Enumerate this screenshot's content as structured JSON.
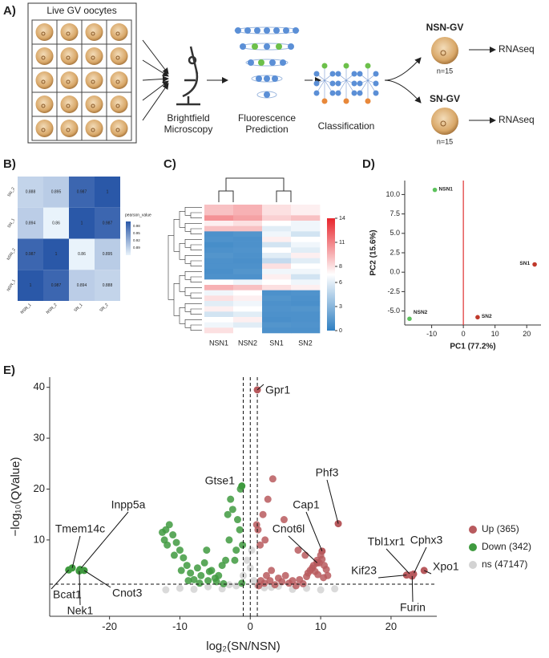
{
  "panel_labels": {
    "a": "A)",
    "b": "B)",
    "c": "C)",
    "d": "D)",
    "e": "E)"
  },
  "workflow": {
    "grid_title": "Live GV oocytes",
    "step1": [
      "Brightfield",
      "Microscopy"
    ],
    "step2": [
      "Fluorescence",
      "Prediction"
    ],
    "step3": "Classification",
    "outcomes": [
      {
        "name": "NSN-GV",
        "n": "n=15",
        "assay": "RNAseq"
      },
      {
        "name": "SN-GV",
        "n": "n=15",
        "assay": "RNAseq"
      }
    ]
  },
  "chart_data": [
    {
      "type": "heatmap",
      "x_categories": [
        "NSN_1",
        "NSN_2",
        "SN_1",
        "SN_2"
      ],
      "y_categories": [
        "SN_2",
        "SN_1",
        "NSN_2",
        "NSN_1"
      ],
      "values": [
        [
          0.888,
          0.895,
          0.987,
          1
        ],
        [
          0.894,
          0.86,
          1,
          0.987
        ],
        [
          0.987,
          1,
          0.86,
          0.895
        ],
        [
          1,
          0.987,
          0.894,
          0.888
        ]
      ],
      "colorbar_title": "pearson_value",
      "colorbar_range": [
        0.86,
        1
      ],
      "colorbar_ticks": [
        0.98,
        0.95,
        0.92,
        0.89
      ],
      "low_color": "#e9f3fb",
      "high_color": "#2a58a8"
    },
    {
      "type": "clustered_heatmap",
      "categories": [
        "NSN1",
        "NSN2",
        "SN1",
        "SN2"
      ],
      "values": [
        [
          9,
          9.5,
          8,
          7.5
        ],
        [
          9,
          9.5,
          8,
          7.5
        ],
        [
          10.5,
          10,
          8.5,
          9
        ],
        [
          7.5,
          8,
          7,
          6.5
        ],
        [
          9,
          9,
          6,
          6.5
        ],
        [
          1,
          1.2,
          6.5,
          5.5
        ],
        [
          1.1,
          1,
          7.5,
          7
        ],
        [
          0.8,
          1,
          5.5,
          6.5
        ],
        [
          1,
          1.1,
          7,
          6
        ],
        [
          1.2,
          1,
          6,
          7.5
        ],
        [
          1,
          0.9,
          5,
          6
        ],
        [
          1,
          1,
          8,
          7
        ],
        [
          0.9,
          1.2,
          6.5,
          6.5
        ],
        [
          1,
          1,
          7.5,
          5.5
        ],
        [
          7,
          6.5,
          7,
          6.5
        ],
        [
          9.5,
          9,
          8,
          7.5
        ],
        [
          6.5,
          7,
          1,
          1.1
        ],
        [
          8,
          7.5,
          1.2,
          1
        ],
        [
          6,
          6.5,
          1,
          0.9
        ],
        [
          7.5,
          7,
          1.1,
          1.2
        ],
        [
          5.5,
          6,
          1,
          1
        ],
        [
          7,
          7.5,
          0.9,
          1
        ],
        [
          6.5,
          6,
          1.2,
          1.1
        ],
        [
          8,
          7,
          1,
          1
        ]
      ],
      "colorbar_range": [
        0,
        14
      ],
      "colorbar_ticks": [
        0,
        3,
        6,
        8,
        11,
        14
      ],
      "low_color": "#2f7fc2",
      "mid_color": "#ffffff",
      "high_color": "#e8252c"
    },
    {
      "type": "scatter",
      "xlabel": "PC1 (77.2%)",
      "ylabel": "PC2 (15.6%)",
      "xlim": [
        -18.5,
        24.5
      ],
      "ylim": [
        -6.8,
        11.8
      ],
      "xticks": [
        -10,
        0,
        10,
        20
      ],
      "yticks": [
        {
          "value": -5,
          "label": "-5.0"
        },
        -2.5,
        {
          "value": 0,
          "label": "0.0"
        },
        2.5,
        {
          "value": 5,
          "label": "5.0"
        },
        7.5,
        {
          "value": 10,
          "label": "10.0"
        }
      ],
      "vline": 0,
      "vline_color": "#e03030",
      "series": [
        {
          "name": "NSN1",
          "color": "#5cc25c",
          "x": [
            -9
          ],
          "values": [
            10.6
          ]
        },
        {
          "name": "NSN2",
          "color": "#5cc25c",
          "x": [
            -17
          ],
          "values": [
            -6
          ]
        },
        {
          "name": "SN1",
          "color": "#c0392b",
          "x": [
            22.5
          ],
          "values": [
            1
          ]
        },
        {
          "name": "SN2",
          "color": "#c0392b",
          "x": [
            4.5
          ],
          "values": [
            -5.8
          ]
        }
      ]
    },
    {
      "type": "volcano",
      "xlabel": "log₂(SN/NSN)",
      "ylabel": "−log₁₀(QValue)",
      "xlim": [
        -28.5,
        26.5
      ],
      "ylim": [
        -5,
        42
      ],
      "xticks": [
        -20,
        -10,
        0,
        10,
        20
      ],
      "yticks": [
        10,
        20,
        30,
        40
      ],
      "vlines": [
        -1,
        0,
        1
      ],
      "hline": 1.3,
      "series": [
        {
          "name": "Up (365)",
          "color": "#b85a5e",
          "label_color": "#8b1a3e",
          "x": [
            1.2,
            1.5,
            2,
            2.3,
            2.8,
            3,
            3.5,
            4,
            4.5,
            5,
            5.5,
            6,
            6.5,
            7,
            7.5,
            8,
            8.2,
            8.5,
            8.8,
            9,
            9.2,
            9.5,
            9.8,
            10,
            10.2,
            10.5,
            10.8,
            11,
            3.2,
            4.8,
            2.5,
            1.8,
            1.1,
            1.4,
            2.1,
            0.9,
            6.8,
            7.8,
            9.6,
            10.4
          ],
          "values": [
            1,
            2,
            1.5,
            3,
            2,
            4,
            1.2,
            2.5,
            1.8,
            3,
            1.5,
            2,
            1,
            2.2,
            1.4,
            2.8,
            3.5,
            4,
            4.5,
            5,
            3.8,
            6,
            5.5,
            7,
            6.2,
            5,
            4.2,
            3,
            22,
            14,
            18,
            15,
            12,
            9,
            10,
            13,
            8,
            7,
            3.2,
            2.6
          ],
          "genes": [
            {
              "name": "Gpr1",
              "x": 1,
              "y": 39.5
            },
            {
              "name": "Phf3",
              "x": 12.5,
              "y": 13.2
            },
            {
              "name": "Cap1",
              "x": 10.2,
              "y": 7.8
            },
            {
              "name": "Cnot6l",
              "x": 9.5,
              "y": 5.5
            },
            {
              "name": "Kif23",
              "x": 22.2,
              "y": 3.1
            },
            {
              "name": "Tbl1xr1",
              "x": 22.8,
              "y": 3.1
            },
            {
              "name": "Cphx3",
              "x": 23.2,
              "y": 3.3
            },
            {
              "name": "Xpo1",
              "x": 24.7,
              "y": 4
            },
            {
              "name": "Furin",
              "x": 23,
              "y": 2.9
            }
          ]
        },
        {
          "name": "Down (342)",
          "color": "#3f9a3f",
          "label_color": "#4c9a2a",
          "x": [
            -1.2,
            -1.5,
            -2,
            -2.5,
            -3,
            -3.5,
            -4,
            -4.5,
            -5,
            -5.5,
            -6,
            -6.5,
            -7,
            -7.5,
            -8,
            -8.5,
            -9,
            -9.5,
            -10,
            -10.5,
            -11,
            -11.5,
            -12,
            -12.2,
            -11.8,
            -10.8,
            -9.8,
            -3.2,
            -2.8,
            -1.8,
            -1.4,
            -2.2,
            -4.8,
            -6.2,
            -7.2,
            -8.8,
            -5.8,
            -3.8,
            -1.1,
            -12.5
          ],
          "values": [
            1.5,
            12,
            8,
            16,
            10,
            6,
            5,
            3,
            2.5,
            4,
            2,
            5.5,
            3,
            4.5,
            2.2,
            3.5,
            5,
            6.5,
            8,
            9.5,
            11,
            13,
            12,
            10,
            9,
            7,
            4,
            15,
            18,
            14,
            20,
            6,
            1.8,
            8,
            1.5,
            2,
            3.8,
            1.4,
            9,
            11.5
          ],
          "genes": [
            {
              "name": "Gtse1",
              "x": -1.2,
              "y": 20.6
            },
            {
              "name": "Inpp5a",
              "x": -24.2,
              "y": 4.2
            },
            {
              "name": "Tmem14c",
              "x": -25.3,
              "y": 4.5
            },
            {
              "name": "Bcat1",
              "x": -25.8,
              "y": 4.1
            },
            {
              "name": "Cnot3",
              "x": -23.6,
              "y": 4
            },
            {
              "name": "Nek1",
              "x": -24.3,
              "y": 3.9
            }
          ]
        },
        {
          "name": "ns (47147)",
          "color": "#d3d3d3",
          "x": [
            -12,
            -10,
            -8,
            -6,
            -4,
            -2,
            -1,
            0,
            0.5,
            1,
            2,
            4,
            6,
            8,
            10,
            12,
            -3,
            3,
            -0.5,
            0.2
          ],
          "values": [
            0.2,
            0.5,
            0.3,
            0.8,
            0.4,
            1,
            3,
            4.5,
            2,
            1.1,
            0.6,
            0.9,
            0.3,
            0.5,
            0.2,
            0.4,
            1.2,
            0.7,
            6,
            8
          ]
        }
      ]
    }
  ]
}
